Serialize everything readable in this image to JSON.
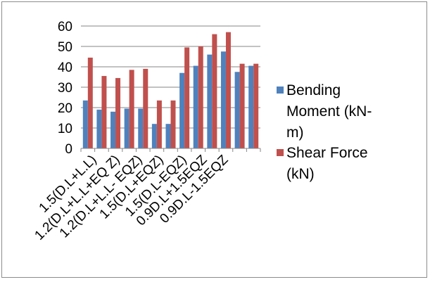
{
  "chart_data": {
    "type": "bar",
    "title": "",
    "xlabel": "",
    "ylabel": "",
    "ylim": [
      0,
      60
    ],
    "yticks": [
      0,
      10,
      20,
      30,
      40,
      50,
      60
    ],
    "grid": true,
    "legend": "right",
    "x_tick_labels": [
      "1.5(D.L+L.L)",
      "1.2(D.L+L.L+EQ Z)",
      "1.2(D.L+L.L- EQZ)",
      "1.5(D.L+EQZ)",
      "1.5(D.L-EQZ)",
      "0.9D.L+1.5EQZ",
      "0.9D.L-1.5EQZ"
    ],
    "series": [
      {
        "name": "Bending Moment (kN-m)",
        "legend_lines": [
          "Bending",
          "Moment (kN-",
          "m)"
        ],
        "color": "#4F81BD",
        "values": [
          23.5,
          19,
          18,
          19.5,
          19.5,
          12,
          12,
          37,
          40.5,
          46,
          47.5,
          37.5,
          40.5
        ]
      },
      {
        "name": "Shear Force (kN)",
        "legend_lines": [
          "Shear Force",
          "(kN)"
        ],
        "color": "#C0504D",
        "values": [
          44.5,
          35.5,
          34.5,
          38.5,
          39,
          23.5,
          23.5,
          49.5,
          50,
          56,
          57,
          41.5,
          41.5
        ]
      }
    ]
  }
}
